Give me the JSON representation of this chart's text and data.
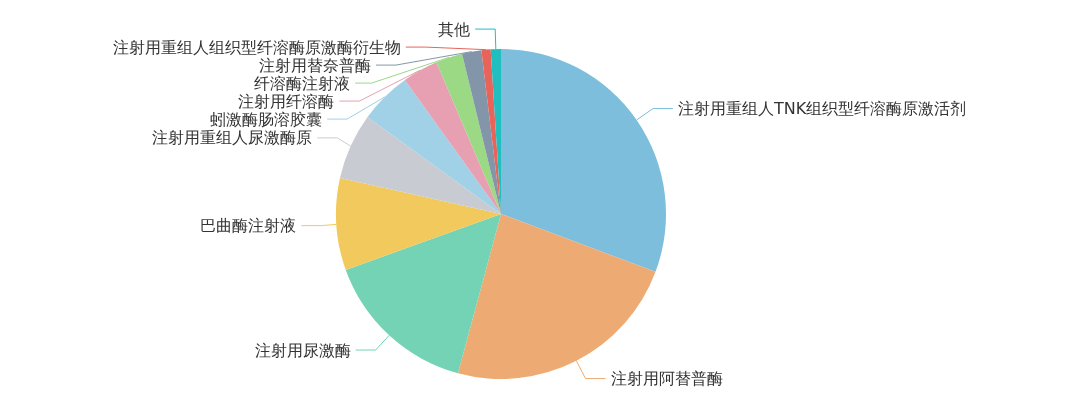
{
  "chart_data": {
    "type": "pie",
    "categories": [
      "注射用重组人TNK组织型纤溶酶原激活剂",
      "注射用阿替普酶",
      "注射用尿激酶",
      "巴曲酶注射液",
      "注射用重组人尿激酶原",
      "蚓激酶肠溶胶囊",
      "注射用纤溶酶",
      "纤溶酶注射液",
      "注射用替奈普酶",
      "注射用重组人组织型纤溶酶原激酶衍生物",
      "其他"
    ],
    "values": [
      30.7,
      23.5,
      15.3,
      9.0,
      6.5,
      5.1,
      3.5,
      2.6,
      1.9,
      0.9,
      1.0
    ],
    "colors": [
      "#7dbedc",
      "#edaa72",
      "#74d3b4",
      "#f1c95c",
      "#c8ccd2",
      "#a0d1e6",
      "#e7a0b1",
      "#9bd985",
      "#8396a9",
      "#e8645a",
      "#1fbfc0"
    ]
  }
}
